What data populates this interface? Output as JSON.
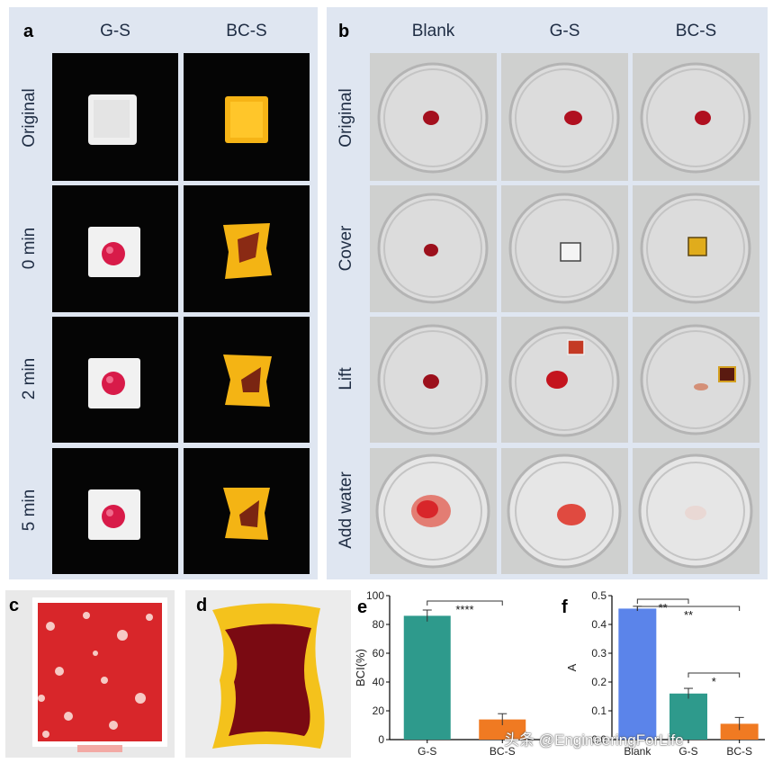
{
  "panels": {
    "a": {
      "letter": "a",
      "columns": [
        "G-S",
        "BC-S"
      ],
      "rows": [
        "Original",
        "0 min",
        "2 min",
        "5 min"
      ]
    },
    "b": {
      "letter": "b",
      "columns": [
        "Blank",
        "G-S",
        "BC-S"
      ],
      "rows": [
        "Original",
        "Cover",
        "Lift",
        "Add water"
      ]
    },
    "c": {
      "letter": "c"
    },
    "d": {
      "letter": "d"
    },
    "e": {
      "letter": "e"
    },
    "f": {
      "letter": "f"
    }
  },
  "chart_data": [
    {
      "panel": "e",
      "type": "bar",
      "categories": [
        "G-S",
        "BC-S"
      ],
      "values": [
        86,
        14
      ],
      "errors": [
        4,
        4
      ],
      "colors": [
        "#2e9a8c",
        "#f07a22"
      ],
      "ylabel": "BCI(%)",
      "xlabel": "",
      "ylim": [
        0,
        100
      ],
      "yticks": [
        "0",
        "20",
        "40",
        "60",
        "80",
        "100"
      ],
      "significance": [
        {
          "from": "G-S",
          "to": "BC-S",
          "label": "****"
        }
      ]
    },
    {
      "panel": "f",
      "type": "bar",
      "categories": [
        "Blank",
        "G-S",
        "BC-S"
      ],
      "values": [
        0.455,
        0.16,
        0.055
      ],
      "errors": [
        0.008,
        0.018,
        0.022
      ],
      "colors": [
        "#5b84ea",
        "#2e9a8c",
        "#f07a22"
      ],
      "ylabel": "A",
      "xlabel": "",
      "ylim": [
        0,
        0.5
      ],
      "yticks": [
        "0.0",
        "0.1",
        "0.2",
        "0.3",
        "0.4",
        "0.5"
      ],
      "significance": [
        {
          "from": "Blank",
          "to": "G-S",
          "label": "**"
        },
        {
          "from": "Blank",
          "to": "BC-S",
          "label": "**"
        },
        {
          "from": "G-S",
          "to": "BC-S",
          "label": "*"
        }
      ]
    }
  ],
  "watermark": "头条 @EngineeringForLife"
}
